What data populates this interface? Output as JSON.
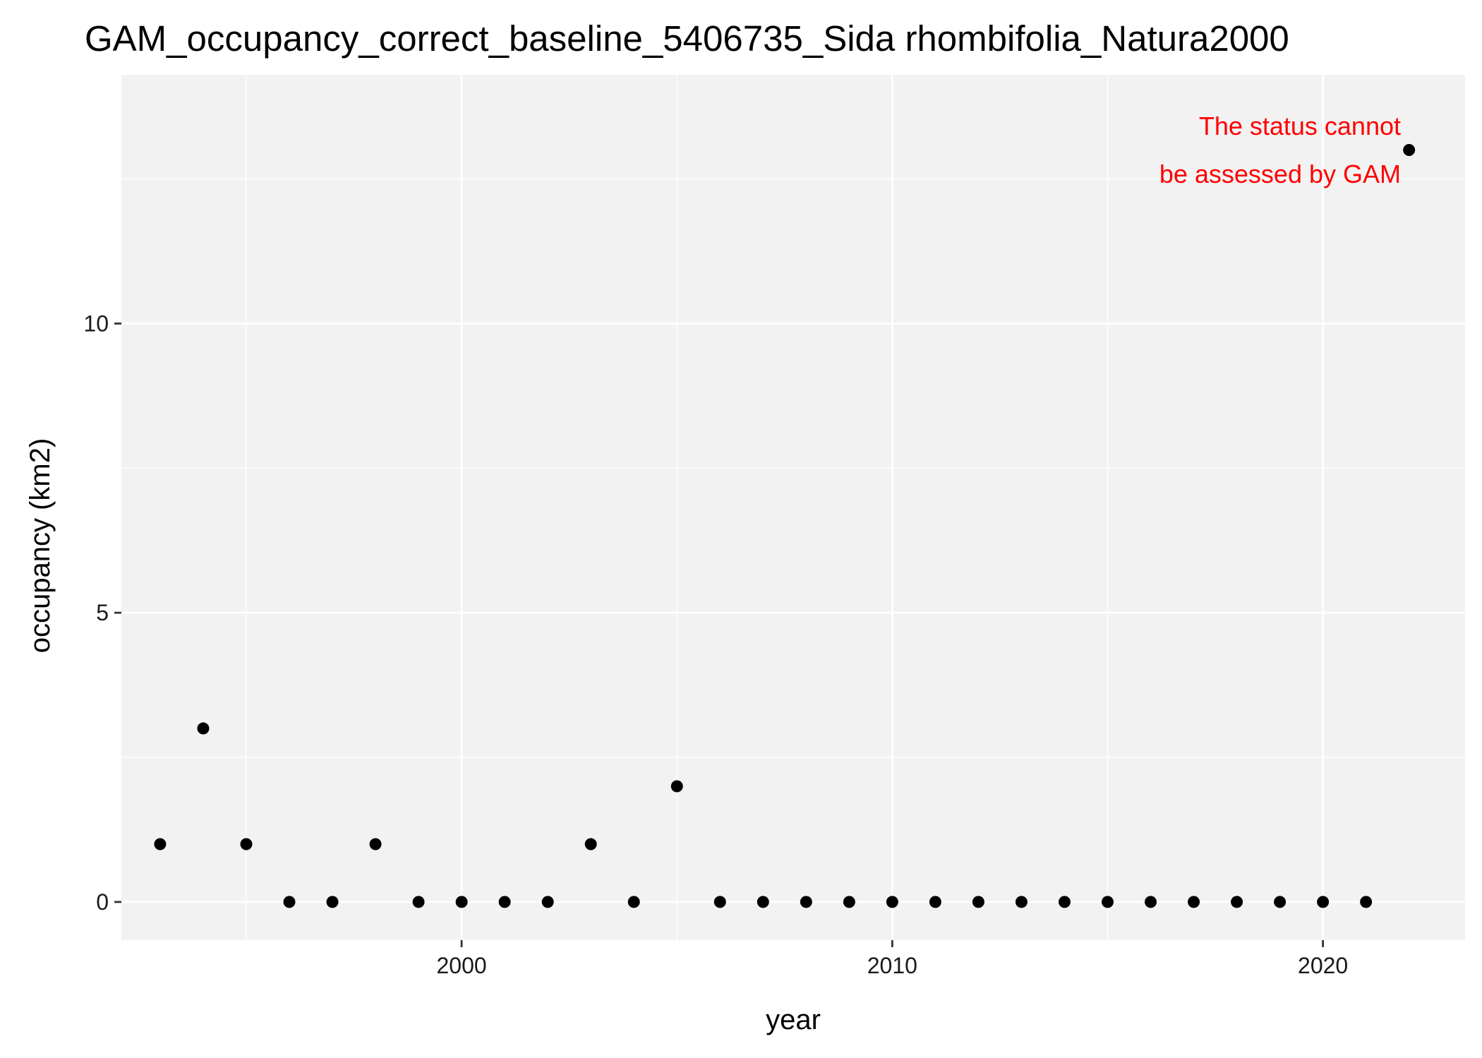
{
  "chart_data": {
    "type": "scatter",
    "title": "GAM_occupancy_correct_baseline_5406735_Sida rhombifolia_Natura2000",
    "xlabel": "year",
    "ylabel": "occupancy (km2)",
    "x_ticks": [
      2000,
      2010,
      2020
    ],
    "y_ticks": [
      0,
      5,
      10
    ],
    "xlim": [
      1992.1,
      2023.3
    ],
    "ylim": [
      -0.66,
      14.3
    ],
    "grid": true,
    "points": [
      {
        "x": 1993,
        "y": 1
      },
      {
        "x": 1994,
        "y": 3
      },
      {
        "x": 1995,
        "y": 1
      },
      {
        "x": 1996,
        "y": 0
      },
      {
        "x": 1997,
        "y": 0
      },
      {
        "x": 1998,
        "y": 1
      },
      {
        "x": 1999,
        "y": 0
      },
      {
        "x": 2000,
        "y": 0
      },
      {
        "x": 2001,
        "y": 0
      },
      {
        "x": 2002,
        "y": 0
      },
      {
        "x": 2003,
        "y": 1
      },
      {
        "x": 2004,
        "y": 0
      },
      {
        "x": 2005,
        "y": 2
      },
      {
        "x": 2006,
        "y": 0
      },
      {
        "x": 2007,
        "y": 0
      },
      {
        "x": 2008,
        "y": 0
      },
      {
        "x": 2009,
        "y": 0
      },
      {
        "x": 2010,
        "y": 0
      },
      {
        "x": 2011,
        "y": 0
      },
      {
        "x": 2012,
        "y": 0
      },
      {
        "x": 2013,
        "y": 0
      },
      {
        "x": 2014,
        "y": 0
      },
      {
        "x": 2015,
        "y": 0
      },
      {
        "x": 2016,
        "y": 0
      },
      {
        "x": 2017,
        "y": 0
      },
      {
        "x": 2018,
        "y": 0
      },
      {
        "x": 2019,
        "y": 0
      },
      {
        "x": 2020,
        "y": 0
      },
      {
        "x": 2021,
        "y": 0
      },
      {
        "x": 2022,
        "y": 13
      }
    ],
    "annotation": {
      "lines": [
        "The status cannot",
        "be assessed by GAM"
      ],
      "color": "#ff0000"
    },
    "colors": {
      "panel": "#f2f2f2",
      "grid": "#ffffff",
      "point": "#000000"
    }
  }
}
